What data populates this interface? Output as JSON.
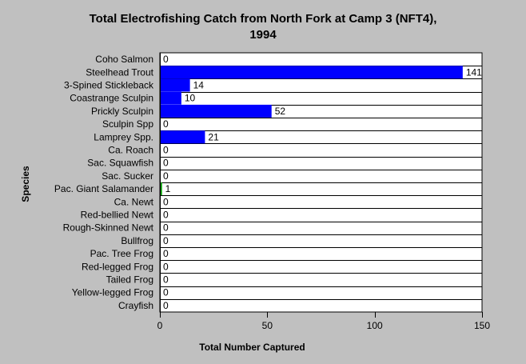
{
  "chart_data": {
    "type": "bar",
    "orientation": "horizontal",
    "title_line1": "Total Electrofishing Catch from North Fork at Camp 3 (NFT4),",
    "title_line2": "1994",
    "xlabel": "Total Number Captured",
    "ylabel": "Species",
    "xlim": [
      0,
      150
    ],
    "xticks": [
      0,
      50,
      100,
      150
    ],
    "grid": "horizontal",
    "categories": [
      "Coho Salmon",
      "Steelhead Trout",
      "3-Spined Stickleback",
      "Coastrange Sculpin",
      "Prickly Sculpin",
      "Sculpin Spp",
      "Lamprey Spp.",
      "Ca. Roach",
      "Sac. Squawfish",
      "Sac. Sucker",
      "Pac. Giant Salamander",
      "Ca. Newt",
      "Red-bellied Newt",
      "Rough-Skinned Newt",
      "Bullfrog",
      "Pac. Tree Frog",
      "Red-legged Frog",
      "Tailed Frog",
      "Yellow-legged Frog",
      "Crayfish"
    ],
    "values": [
      0,
      141,
      14,
      10,
      52,
      0,
      21,
      0,
      0,
      0,
      1,
      0,
      0,
      0,
      0,
      0,
      0,
      0,
      0,
      0
    ],
    "bar_color": "#0000ff",
    "plot_background": "#ffffff",
    "page_background": "#c0c0c0"
  }
}
